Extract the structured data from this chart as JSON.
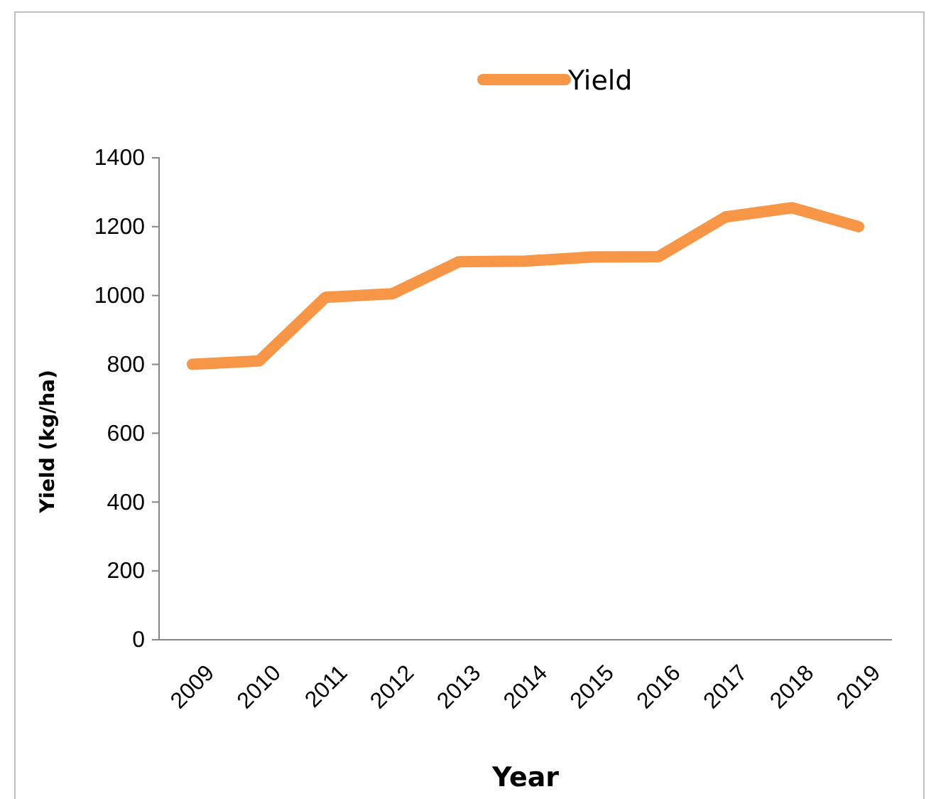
{
  "chart_data": {
    "type": "line",
    "xlabel": "Year",
    "ylabel": "Yield (kg/ha)",
    "categories": [
      "2009",
      "2010",
      "2011",
      "2012",
      "2013",
      "2014",
      "2015",
      "2016",
      "2017",
      "2018",
      "2019"
    ],
    "series": [
      {
        "name": "Yield",
        "color": "#f79646",
        "values": [
          800,
          810,
          995,
          1005,
          1098,
          1100,
          1112,
          1113,
          1228,
          1255,
          1200
        ]
      }
    ],
    "ylim": [
      0,
      1400
    ],
    "yticks": [
      0,
      200,
      400,
      600,
      800,
      1000,
      1200,
      1400
    ],
    "legend": "top",
    "grid": false,
    "marker": "none",
    "line_style": "solid"
  }
}
